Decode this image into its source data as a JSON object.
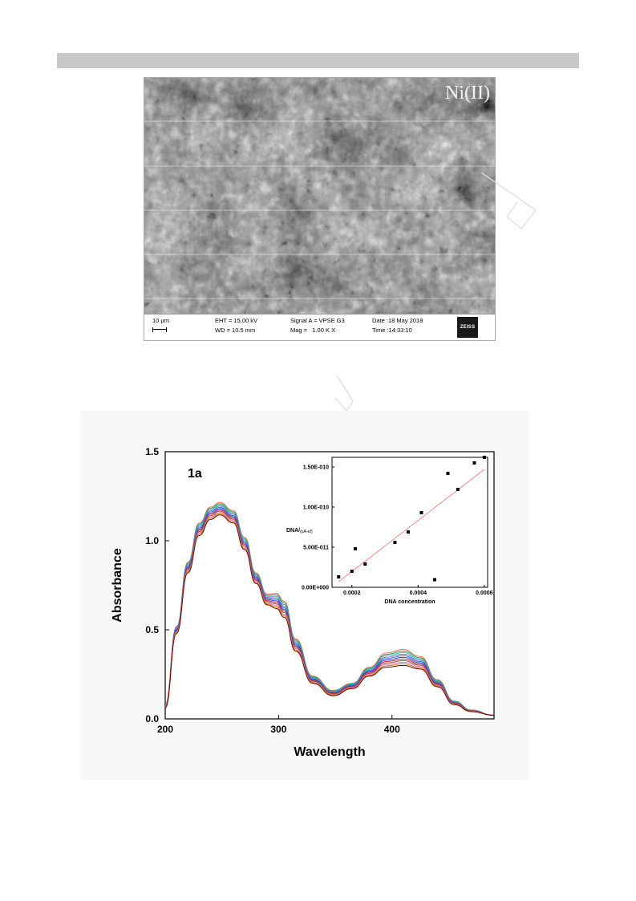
{
  "sem": {
    "label": "Ni(II)",
    "scale": "10 µm",
    "eht": "EHT = 15.00 kV",
    "wd": "WD = 10.5 mm",
    "signal": "Signal A = VPSE G3",
    "mag": "Mag =   1.00 K X",
    "date": "Date :18 May 2018",
    "time": "Time :14:33:10",
    "logo": "ZEISS"
  },
  "chart_data": [
    {
      "type": "line",
      "annotation": "1a",
      "xlabel": "Wavelength",
      "ylabel": "Absorbance",
      "xlim": [
        200,
        490
      ],
      "ylim": [
        0.0,
        1.5
      ],
      "xticks": [
        200,
        300,
        400
      ],
      "yticks": [
        "0.0",
        "0.5",
        "1.0",
        "1.5"
      ],
      "series_count": 11,
      "x": [
        200,
        210,
        220,
        230,
        240,
        248,
        260,
        270,
        280,
        290,
        298,
        305,
        315,
        330,
        348,
        365,
        380,
        395,
        410,
        425,
        440,
        455,
        470,
        490
      ],
      "series_top": [
        0.08,
        0.52,
        0.88,
        1.1,
        1.19,
        1.215,
        1.17,
        1.02,
        0.82,
        0.7,
        0.705,
        0.66,
        0.45,
        0.24,
        0.16,
        0.2,
        0.29,
        0.37,
        0.39,
        0.35,
        0.22,
        0.1,
        0.05,
        0.02
      ],
      "series_bottom": [
        0.06,
        0.48,
        0.82,
        1.03,
        1.12,
        1.145,
        1.1,
        0.95,
        0.76,
        0.64,
        0.62,
        0.57,
        0.38,
        0.2,
        0.13,
        0.17,
        0.24,
        0.29,
        0.3,
        0.28,
        0.18,
        0.08,
        0.04,
        0.02
      ],
      "colors": [
        "#ff6f6f",
        "#2ca02c",
        "#17becf",
        "#9467bd",
        "#1f77b4",
        "#3b3bff",
        "#d62728",
        "#8c564b",
        "#e377c2",
        "#b8860b",
        "#7f0000"
      ]
    },
    {
      "type": "scatter",
      "xlabel": "DNA concentration",
      "ylabel": "DNA/(εA-εf)",
      "ylabel_main": "DNA/",
      "ylabel_sub": "(εA-εf)",
      "xlim": [
        0.00014,
        0.00061
      ],
      "ylim": [
        0,
        1.62e-10
      ],
      "xticks": [
        "0.0002",
        "0.0004",
        "0.0006"
      ],
      "yticks": [
        "0.00E+000",
        "5.00E-011",
        "1.00E-010",
        "1.50E-010"
      ],
      "points": [
        [
          0.00016,
          1.3e-11
        ],
        [
          0.0002,
          2e-11
        ],
        [
          0.00021,
          4.8e-11
        ],
        [
          0.00024,
          2.9e-11
        ],
        [
          0.00033,
          5.6e-11
        ],
        [
          0.00037,
          6.9e-11
        ],
        [
          0.00041,
          9.3e-11
        ],
        [
          0.00045,
          9.5e-12
        ],
        [
          0.00049,
          1.42e-10
        ],
        [
          0.00052,
          1.22e-10
        ],
        [
          0.00057,
          1.55e-10
        ],
        [
          0.0006,
          1.62e-10
        ]
      ],
      "fit_line": [
        [
          0.00016,
          7e-12
        ],
        [
          0.0006,
          1.47e-10
        ]
      ],
      "fit_color": "#ff7070"
    }
  ]
}
